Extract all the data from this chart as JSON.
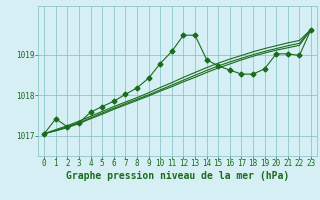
{
  "background_color": "#d6eff5",
  "grid_color": "#7fbfbf",
  "line_color": "#1a6b1a",
  "title": "Graphe pression niveau de la mer (hPa)",
  "ylim": [
    1016.5,
    1020.2
  ],
  "yticks": [
    1017,
    1018,
    1019
  ],
  "xlim": [
    -0.5,
    23.5
  ],
  "xticks": [
    0,
    1,
    2,
    3,
    4,
    5,
    6,
    7,
    8,
    9,
    10,
    11,
    12,
    13,
    14,
    15,
    16,
    17,
    18,
    19,
    20,
    21,
    22,
    23
  ],
  "series1": [
    1017.05,
    1017.42,
    1017.22,
    1017.32,
    1017.58,
    1017.72,
    1017.85,
    1018.02,
    1018.18,
    1018.42,
    1018.78,
    1019.08,
    1019.48,
    1019.48,
    1018.88,
    1018.72,
    1018.62,
    1018.52,
    1018.52,
    1018.65,
    1019.02,
    1019.02,
    1018.98,
    1019.62
  ],
  "series2": [
    1017.05,
    1017.15,
    1017.25,
    1017.36,
    1017.48,
    1017.6,
    1017.72,
    1017.83,
    1017.94,
    1018.06,
    1018.19,
    1018.31,
    1018.44,
    1018.56,
    1018.68,
    1018.79,
    1018.89,
    1018.98,
    1019.07,
    1019.15,
    1019.22,
    1019.29,
    1019.35,
    1019.62
  ],
  "series3": [
    1017.05,
    1017.13,
    1017.22,
    1017.32,
    1017.44,
    1017.56,
    1017.68,
    1017.79,
    1017.9,
    1018.01,
    1018.13,
    1018.25,
    1018.37,
    1018.49,
    1018.61,
    1018.72,
    1018.82,
    1018.91,
    1019.0,
    1019.08,
    1019.15,
    1019.22,
    1019.28,
    1019.62
  ],
  "series4": [
    1017.05,
    1017.12,
    1017.2,
    1017.3,
    1017.42,
    1017.53,
    1017.65,
    1017.76,
    1017.87,
    1017.98,
    1018.1,
    1018.21,
    1018.33,
    1018.44,
    1018.56,
    1018.67,
    1018.77,
    1018.87,
    1018.96,
    1019.04,
    1019.11,
    1019.17,
    1019.23,
    1019.62
  ],
  "tick_fontsize": 5.5,
  "tick_color": "#1a6b1a",
  "title_fontsize": 7,
  "title_color": "#1a6b1a",
  "marker_size": 2.5,
  "line_width": 0.8
}
